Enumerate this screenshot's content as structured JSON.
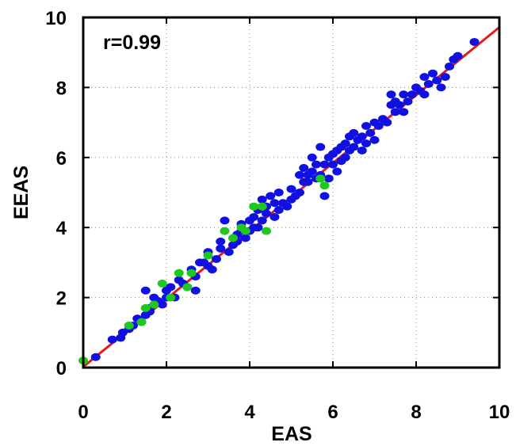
{
  "chart_data": {
    "type": "scatter",
    "title": "",
    "xlabel": "EAS",
    "ylabel": "EEAS",
    "annotation": "r=0.99",
    "xlim": [
      0,
      10
    ],
    "ylim": [
      0,
      10
    ],
    "xticks": [
      "0",
      "2",
      "4",
      "6",
      "8",
      "10"
    ],
    "yticks": [
      "0",
      "2",
      "4",
      "6",
      "8",
      "10"
    ],
    "grid": true,
    "fit_line": {
      "color": "#e41a1c",
      "x": [
        0,
        10
      ],
      "y": [
        0.02,
        9.72
      ]
    },
    "series": [
      {
        "color": "#1010e0",
        "points": [
          [
            0.3,
            0.3
          ],
          [
            0.7,
            0.8
          ],
          [
            0.9,
            0.85
          ],
          [
            0.95,
            1.0
          ],
          [
            1.1,
            1.1
          ],
          [
            1.2,
            1.2
          ],
          [
            1.3,
            1.4
          ],
          [
            1.4,
            1.3
          ],
          [
            1.5,
            1.5
          ],
          [
            1.5,
            2.2
          ],
          [
            1.6,
            1.7
          ],
          [
            1.6,
            1.6
          ],
          [
            1.7,
            2.0
          ],
          [
            1.8,
            1.9
          ],
          [
            1.9,
            1.8
          ],
          [
            2.0,
            2.0
          ],
          [
            2.0,
            2.2
          ],
          [
            2.1,
            2.3
          ],
          [
            2.2,
            2.0
          ],
          [
            2.3,
            2.5
          ],
          [
            2.4,
            2.4
          ],
          [
            2.5,
            2.3
          ],
          [
            2.6,
            2.8
          ],
          [
            2.7,
            2.6
          ],
          [
            2.7,
            2.2
          ],
          [
            2.8,
            3.0
          ],
          [
            2.9,
            3.0
          ],
          [
            3.0,
            2.9
          ],
          [
            3.0,
            3.3
          ],
          [
            3.1,
            2.8
          ],
          [
            3.2,
            3.1
          ],
          [
            3.3,
            3.4
          ],
          [
            3.3,
            3.6
          ],
          [
            3.4,
            4.2
          ],
          [
            3.5,
            3.3
          ],
          [
            3.6,
            3.5
          ],
          [
            3.7,
            3.8
          ],
          [
            3.7,
            3.6
          ],
          [
            3.8,
            3.9
          ],
          [
            3.8,
            4.1
          ],
          [
            3.9,
            3.7
          ],
          [
            4.0,
            3.9
          ],
          [
            4.0,
            4.2
          ],
          [
            4.1,
            4.3
          ],
          [
            4.1,
            4.0
          ],
          [
            4.2,
            4.5
          ],
          [
            4.2,
            4.0
          ],
          [
            4.3,
            4.2
          ],
          [
            4.3,
            4.8
          ],
          [
            4.4,
            4.6
          ],
          [
            4.4,
            4.4
          ],
          [
            4.5,
            4.9
          ],
          [
            4.6,
            4.7
          ],
          [
            4.6,
            4.3
          ],
          [
            4.7,
            4.5
          ],
          [
            4.7,
            5.0
          ],
          [
            4.8,
            4.7
          ],
          [
            4.9,
            4.6
          ],
          [
            5.0,
            4.8
          ],
          [
            5.0,
            5.1
          ],
          [
            5.1,
            4.9
          ],
          [
            5.2,
            5.5
          ],
          [
            5.2,
            5.0
          ],
          [
            5.3,
            5.3
          ],
          [
            5.3,
            5.7
          ],
          [
            5.4,
            5.5
          ],
          [
            5.4,
            5.3
          ],
          [
            5.5,
            5.6
          ],
          [
            5.5,
            6.0
          ],
          [
            5.6,
            5.8
          ],
          [
            5.6,
            5.4
          ],
          [
            5.7,
            5.5
          ],
          [
            5.7,
            6.3
          ],
          [
            5.8,
            5.8
          ],
          [
            5.8,
            4.9
          ],
          [
            5.9,
            6.0
          ],
          [
            5.9,
            5.4
          ],
          [
            6.0,
            6.1
          ],
          [
            6.0,
            5.8
          ],
          [
            6.1,
            6.2
          ],
          [
            6.1,
            5.6
          ],
          [
            6.2,
            6.3
          ],
          [
            6.2,
            5.9
          ],
          [
            6.3,
            6.4
          ],
          [
            6.3,
            6.0
          ],
          [
            6.4,
            6.6
          ],
          [
            6.4,
            6.2
          ],
          [
            6.5,
            6.3
          ],
          [
            6.5,
            6.7
          ],
          [
            6.6,
            6.5
          ],
          [
            6.7,
            6.6
          ],
          [
            6.7,
            6.2
          ],
          [
            6.8,
            6.9
          ],
          [
            6.8,
            6.4
          ],
          [
            6.9,
            6.7
          ],
          [
            7.0,
            7.0
          ],
          [
            7.0,
            6.5
          ],
          [
            7.1,
            6.9
          ],
          [
            7.2,
            7.1
          ],
          [
            7.3,
            7.0
          ],
          [
            7.4,
            7.5
          ],
          [
            7.4,
            7.8
          ],
          [
            7.5,
            7.6
          ],
          [
            7.5,
            7.3
          ],
          [
            7.6,
            7.5
          ],
          [
            7.7,
            7.8
          ],
          [
            7.7,
            7.3
          ],
          [
            7.8,
            7.6
          ],
          [
            7.9,
            7.8
          ],
          [
            8.0,
            8.0
          ],
          [
            8.1,
            7.9
          ],
          [
            8.2,
            8.3
          ],
          [
            8.2,
            7.8
          ],
          [
            8.3,
            8.1
          ],
          [
            8.4,
            8.4
          ],
          [
            8.5,
            8.2
          ],
          [
            8.6,
            8.0
          ],
          [
            8.7,
            8.3
          ],
          [
            8.8,
            8.6
          ],
          [
            8.9,
            8.8
          ],
          [
            9.0,
            8.9
          ],
          [
            9.4,
            9.3
          ]
        ]
      },
      {
        "color": "#1ec81e",
        "points": [
          [
            0.0,
            0.2
          ],
          [
            1.1,
            1.2
          ],
          [
            1.4,
            1.3
          ],
          [
            1.5,
            1.7
          ],
          [
            1.7,
            1.8
          ],
          [
            1.9,
            2.4
          ],
          [
            2.1,
            2.0
          ],
          [
            2.3,
            2.7
          ],
          [
            2.5,
            2.3
          ],
          [
            2.6,
            2.7
          ],
          [
            3.0,
            3.2
          ],
          [
            3.4,
            3.9
          ],
          [
            3.6,
            3.7
          ],
          [
            3.8,
            4.0
          ],
          [
            3.9,
            3.9
          ],
          [
            4.1,
            4.6
          ],
          [
            4.3,
            4.6
          ],
          [
            4.4,
            3.9
          ],
          [
            5.7,
            5.4
          ],
          [
            5.8,
            5.2
          ]
        ]
      }
    ]
  }
}
